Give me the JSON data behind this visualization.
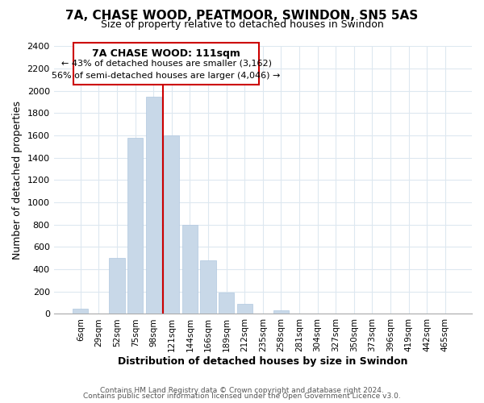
{
  "title": "7A, CHASE WOOD, PEATMOOR, SWINDON, SN5 5AS",
  "subtitle": "Size of property relative to detached houses in Swindon",
  "xlabel": "Distribution of detached houses by size in Swindon",
  "ylabel": "Number of detached properties",
  "bar_labels": [
    "6sqm",
    "29sqm",
    "52sqm",
    "75sqm",
    "98sqm",
    "121sqm",
    "144sqm",
    "166sqm",
    "189sqm",
    "212sqm",
    "235sqm",
    "258sqm",
    "281sqm",
    "304sqm",
    "327sqm",
    "350sqm",
    "373sqm",
    "396sqm",
    "419sqm",
    "442sqm",
    "465sqm"
  ],
  "bar_values": [
    50,
    0,
    500,
    1575,
    1950,
    1600,
    800,
    480,
    190,
    90,
    0,
    30,
    0,
    0,
    0,
    0,
    0,
    0,
    0,
    0,
    0
  ],
  "bar_color": "#c8d8e8",
  "bar_edge_color": "#b0c8e0",
  "vline_x_index": 4.5,
  "vline_color": "#cc0000",
  "ylim": [
    0,
    2400
  ],
  "yticks": [
    0,
    200,
    400,
    600,
    800,
    1000,
    1200,
    1400,
    1600,
    1800,
    2000,
    2200,
    2400
  ],
  "annotation_title": "7A CHASE WOOD: 111sqm",
  "annotation_line1": "← 43% of detached houses are smaller (3,162)",
  "annotation_line2": "56% of semi-detached houses are larger (4,046) →",
  "annotation_box_color": "#ffffff",
  "annotation_border_color": "#cc0000",
  "footer_line1": "Contains HM Land Registry data © Crown copyright and database right 2024.",
  "footer_line2": "Contains public sector information licensed under the Open Government Licence v3.0.",
  "background_color": "#ffffff",
  "grid_color": "#dde8f0",
  "title_fontsize": 11,
  "subtitle_fontsize": 9
}
